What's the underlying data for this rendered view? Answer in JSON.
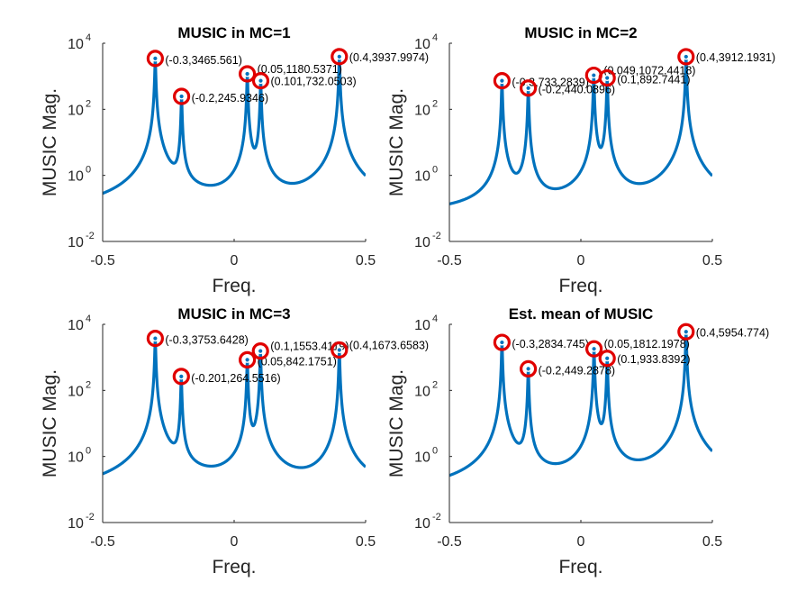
{
  "colors": {
    "curve": "#0072bd",
    "marker": "#e00000",
    "axis": "#262626"
  },
  "chart_data": [
    {
      "type": "line",
      "title": "MUSIC in MC=1",
      "xlabel": "Freq.",
      "ylabel": "MUSIC Mag.",
      "xlim": [
        -0.5,
        0.5
      ],
      "ylim": [
        0.01,
        10000
      ],
      "yscale": "log",
      "xticks": [
        "-0.5",
        "0",
        "0.5"
      ],
      "yticks": [
        {
          "base": "10",
          "exp": "-2"
        },
        {
          "base": "10",
          "exp": "0"
        },
        {
          "base": "10",
          "exp": "2"
        },
        {
          "base": "10",
          "exp": "4"
        }
      ],
      "baseline": 0.06,
      "peaks": [
        {
          "x": -0.3,
          "y": 3465.561,
          "label": "(-0.3,3465.561)"
        },
        {
          "x": -0.2,
          "y": 245.9346,
          "label": "(-0.2,245.9346)"
        },
        {
          "x": 0.05,
          "y": 1180.5371,
          "label": "(0.05,1180.5371)"
        },
        {
          "x": 0.101,
          "y": 732.0503,
          "label": "(0.101,732.0503)"
        },
        {
          "x": 0.4,
          "y": 3937.9974,
          "label": "(0.4,3937.9974)"
        }
      ]
    },
    {
      "type": "line",
      "title": "MUSIC in MC=2",
      "xlabel": "Freq.",
      "ylabel": "MUSIC Mag.",
      "xlim": [
        -0.5,
        0.5
      ],
      "ylim": [
        0.01,
        10000
      ],
      "yscale": "log",
      "xticks": [
        "-0.5",
        "0",
        "0.5"
      ],
      "yticks": [
        {
          "base": "10",
          "exp": "-2"
        },
        {
          "base": "10",
          "exp": "0"
        },
        {
          "base": "10",
          "exp": "2"
        },
        {
          "base": "10",
          "exp": "4"
        }
      ],
      "baseline": 0.06,
      "peaks": [
        {
          "x": -0.3,
          "y": 733.2839,
          "label": "(-0.3,733.2839)"
        },
        {
          "x": -0.2,
          "y": 440.0896,
          "label": "(-0.2,440.0896)"
        },
        {
          "x": 0.049,
          "y": 1072.4418,
          "label": "(0.049,1072.4418)"
        },
        {
          "x": 0.1,
          "y": 892.7441,
          "label": "(0.1,892.7441)"
        },
        {
          "x": 0.4,
          "y": 3912.1931,
          "label": "(0.4,3912.1931)"
        }
      ]
    },
    {
      "type": "line",
      "title": "MUSIC in MC=3",
      "xlabel": "Freq.",
      "ylabel": "MUSIC Mag.",
      "xlim": [
        -0.5,
        0.5
      ],
      "ylim": [
        0.01,
        10000
      ],
      "yscale": "log",
      "xticks": [
        "-0.5",
        "0",
        "0.5"
      ],
      "yticks": [
        {
          "base": "10",
          "exp": "-2"
        },
        {
          "base": "10",
          "exp": "0"
        },
        {
          "base": "10",
          "exp": "2"
        },
        {
          "base": "10",
          "exp": "4"
        }
      ],
      "baseline": 0.06,
      "peaks": [
        {
          "x": -0.3,
          "y": 3753.6428,
          "label": "(-0.3,3753.6428)"
        },
        {
          "x": -0.201,
          "y": 264.5516,
          "label": "(-0.201,264.5516)"
        },
        {
          "x": 0.05,
          "y": 842.1751,
          "label": "(0.05,842.1751)"
        },
        {
          "x": 0.1,
          "y": 1553.4119,
          "label": "(0.1,1553.4119)"
        },
        {
          "x": 0.4,
          "y": 1673.6583,
          "label": "(0.4,1673.6583)"
        }
      ]
    },
    {
      "type": "line",
      "title": "Est. mean of MUSIC",
      "xlabel": "Freq.",
      "ylabel": "MUSIC Mag.",
      "xlim": [
        -0.5,
        0.5
      ],
      "ylim": [
        0.01,
        10000
      ],
      "yscale": "log",
      "xticks": [
        "-0.5",
        "0",
        "0.5"
      ],
      "yticks": [
        {
          "base": "10",
          "exp": "-2"
        },
        {
          "base": "10",
          "exp": "0"
        },
        {
          "base": "10",
          "exp": "2"
        },
        {
          "base": "10",
          "exp": "4"
        }
      ],
      "baseline": 0.06,
      "peaks": [
        {
          "x": -0.3,
          "y": 2834.745,
          "label": "(-0.3,2834.745)"
        },
        {
          "x": -0.2,
          "y": 449.2878,
          "label": "(-0.2,449.2878)"
        },
        {
          "x": 0.05,
          "y": 1812.1978,
          "label": "(0.05,1812.1978)"
        },
        {
          "x": 0.1,
          "y": 933.8392,
          "label": "(0.1,933.8392)"
        },
        {
          "x": 0.4,
          "y": 5954.774,
          "label": "(0.4,5954.774)"
        }
      ]
    }
  ]
}
